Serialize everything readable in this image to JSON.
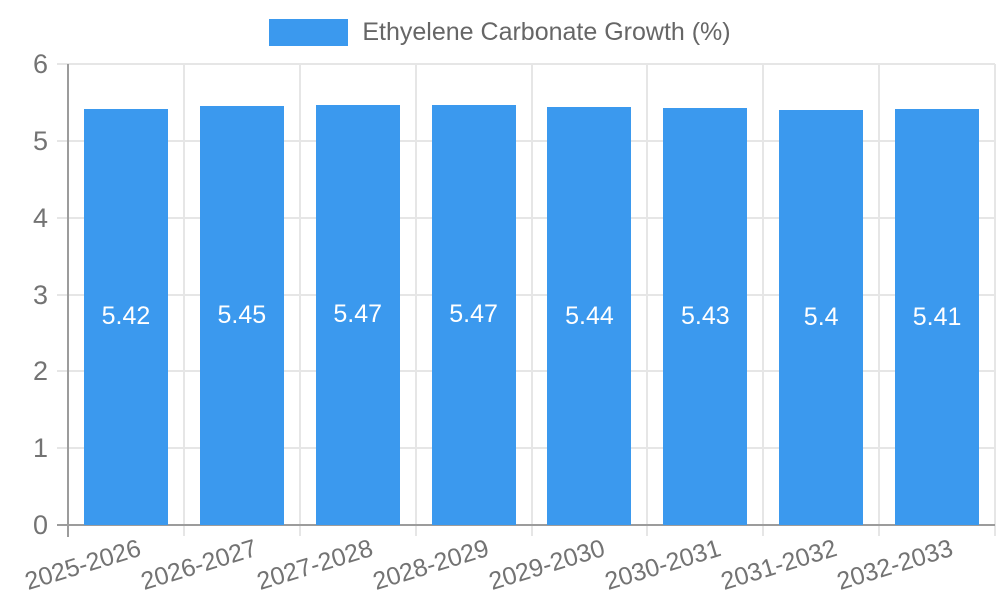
{
  "chart_data": {
    "type": "bar",
    "title": "",
    "categories": [
      "2025-2026",
      "2026-2027",
      "2027-2028",
      "2028-2029",
      "2029-2030",
      "2030-2031",
      "2031-2032",
      "2032-2033"
    ],
    "series": [
      {
        "name": "Ethyelene Carbonate Growth (%)",
        "color": "#3B99EE",
        "values": [
          5.42,
          5.45,
          5.47,
          5.47,
          5.44,
          5.43,
          5.4,
          5.41
        ]
      }
    ],
    "ylim": [
      0,
      6
    ],
    "yticks": [
      0,
      1,
      2,
      3,
      4,
      5,
      6
    ],
    "grid": true,
    "legend_position": "top-center",
    "value_labels_position": "inside-center",
    "value_label_color": "#FFFFFF",
    "grid_color": "#E6E6E6",
    "axis_color": "#9C9C9C",
    "tick_label_color": "#737373",
    "legend_text_color": "#666666"
  }
}
